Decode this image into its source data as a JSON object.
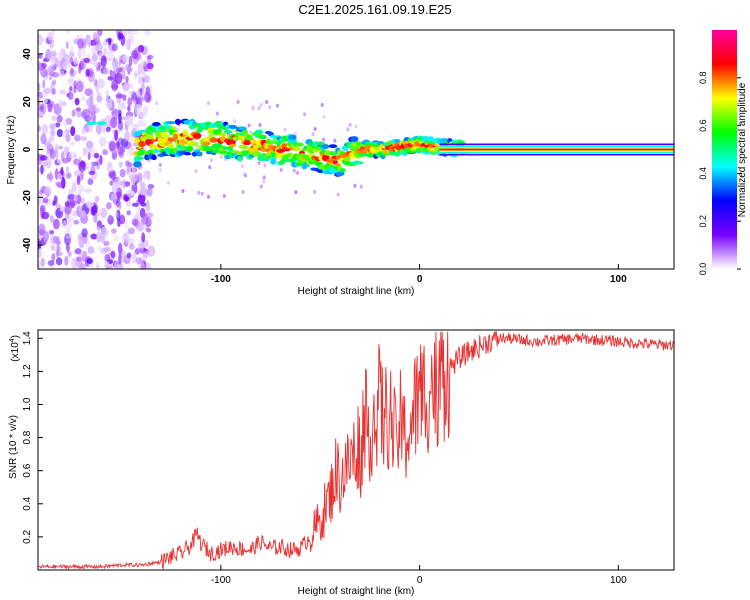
{
  "title": "C2E1.2025.161.09.19.E25",
  "chart_data": [
    {
      "type": "heatmap",
      "xlabel": "Height of straight line (km)",
      "ylabel": "Frequency (Hz)",
      "xlim": [
        -192,
        128
      ],
      "ylim": [
        -50,
        50
      ],
      "xticks": [
        -100,
        0,
        100
      ],
      "yticks": [
        -40,
        -20,
        0,
        20,
        40
      ],
      "colorbar": {
        "label": "Normalized spectral amplitude",
        "range": [
          0,
          1
        ],
        "ticks": [
          "0.0",
          "0.2",
          "0.4",
          "0.6",
          "0.8"
        ],
        "tick_values": [
          0,
          0.2,
          0.4,
          0.6,
          0.8
        ],
        "colors": [
          "#ffffff",
          "#7a00ff",
          "#0000ff",
          "#00ffff",
          "#00ff00",
          "#ffff00",
          "#ff0000",
          "#ff00a0"
        ]
      },
      "ridge": [
        {
          "x": -140,
          "y": 3
        },
        {
          "x": -130,
          "y": 4
        },
        {
          "x": -120,
          "y": 5
        },
        {
          "x": -110,
          "y": 5
        },
        {
          "x": -100,
          "y": 4
        },
        {
          "x": -90,
          "y": 3
        },
        {
          "x": -80,
          "y": 2
        },
        {
          "x": -70,
          "y": 0
        },
        {
          "x": -60,
          "y": -1
        },
        {
          "x": -50,
          "y": -3
        },
        {
          "x": -40,
          "y": -5
        },
        {
          "x": -35,
          "y": -2
        },
        {
          "x": -30,
          "y": 0
        },
        {
          "x": -20,
          "y": 0
        },
        {
          "x": -10,
          "y": 1
        },
        {
          "x": 0,
          "y": 2
        },
        {
          "x": 10,
          "y": 1
        },
        {
          "x": 20,
          "y": 0.5
        }
      ],
      "steady_line": {
        "x_start": 10,
        "x_end": 128,
        "y": 0
      }
    },
    {
      "type": "line",
      "xlabel": "Height of straight line (km)",
      "ylabel": "SNR (10 * v/v)",
      "y_multiplier": "(x10",
      "y_multiplier_exp": "4",
      "xlim": [
        -192,
        128
      ],
      "ylim": [
        0,
        1.45
      ],
      "xticks": [
        -100,
        0,
        100
      ],
      "yticks": [
        0.2,
        0.4,
        0.6,
        0.8,
        1.0,
        1.2,
        1.4
      ],
      "ytick_labels": [
        "0.2",
        "0.4",
        "0.6",
        "0.8",
        "1.0",
        "1.2",
        "1.4"
      ],
      "series": [
        {
          "color": "#e83030",
          "x": [
            -192,
            -180,
            -170,
            -160,
            -150,
            -140,
            -130,
            -125,
            -120,
            -115,
            -112,
            -110,
            -105,
            -100,
            -95,
            -90,
            -85,
            -80,
            -75,
            -70,
            -65,
            -60,
            -55,
            -50,
            -45,
            -42,
            -40,
            -35,
            -30,
            -28,
            -25,
            -22,
            -20,
            -18,
            -15,
            -12,
            -10,
            -8,
            -5,
            -3,
            0,
            5,
            10,
            15,
            20,
            25,
            30,
            35,
            40,
            45,
            50,
            60,
            70,
            80,
            90,
            100,
            110,
            120,
            128
          ],
          "y": [
            0.02,
            0.02,
            0.02,
            0.02,
            0.03,
            0.03,
            0.05,
            0.08,
            0.1,
            0.15,
            0.22,
            0.16,
            0.1,
            0.12,
            0.14,
            0.13,
            0.12,
            0.17,
            0.13,
            0.14,
            0.12,
            0.13,
            0.2,
            0.3,
            0.45,
            0.6,
            0.55,
            0.65,
            0.78,
            0.9,
            0.85,
            0.95,
            1.02,
            0.9,
            0.95,
            0.75,
            0.9,
            0.8,
            0.85,
            0.95,
            1.05,
            1.1,
            1.18,
            1.22,
            1.28,
            1.32,
            1.35,
            1.38,
            1.4,
            1.4,
            1.39,
            1.38,
            1.39,
            1.4,
            1.39,
            1.38,
            1.37,
            1.36,
            1.36
          ]
        }
      ]
    }
  ]
}
